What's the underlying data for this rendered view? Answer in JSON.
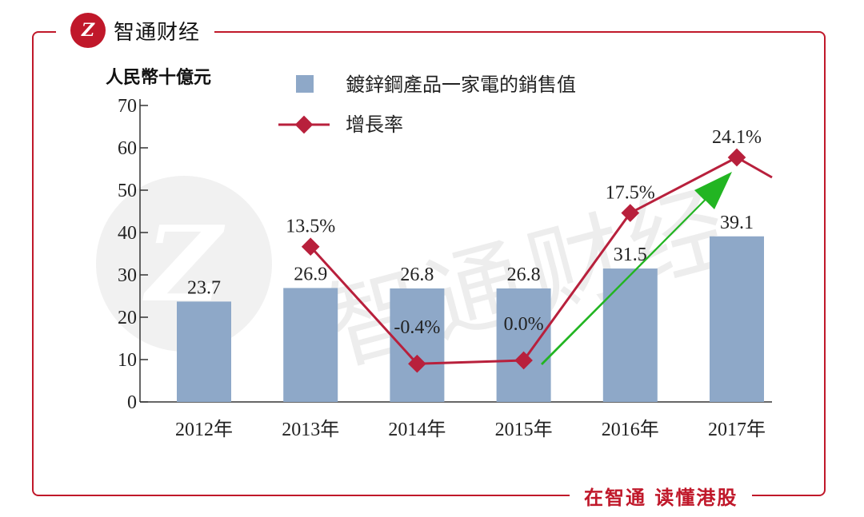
{
  "header": {
    "brand_logo": "Z",
    "brand_name": "智通财经"
  },
  "footer": {
    "slogan": "在智通 读懂港股"
  },
  "watermark": {
    "logo": "Z",
    "text": "智通财经"
  },
  "colors": {
    "frame": "#c0182a",
    "bar": "#8ea8c8",
    "line": "#b8203c",
    "arrow": "#22b522"
  },
  "chart_data": {
    "type": "bar",
    "ylabel": "人民幣十億元",
    "categories": [
      "2012年",
      "2013年",
      "2014年",
      "2015年",
      "2016年",
      "2017年"
    ],
    "y_ticks": [
      "0",
      "10",
      "20",
      "30",
      "40",
      "50",
      "60",
      "70"
    ],
    "ylim": [
      0,
      70
    ],
    "series": [
      {
        "name": "鍍鋅鋼產品一家電的銷售值",
        "type": "bar",
        "values": [
          23.7,
          26.9,
          26.8,
          26.8,
          31.5,
          39.1
        ],
        "labels": [
          "23.7",
          "26.9",
          "26.8",
          "26.8",
          "31.5",
          "39.1"
        ]
      },
      {
        "name": "增長率",
        "type": "line",
        "values": [
          null,
          13.5,
          -0.4,
          0.0,
          17.5,
          24.1
        ],
        "labels": [
          "",
          "13.5%",
          "-0.4%",
          "0.0%",
          "17.5%",
          "24.1%"
        ]
      }
    ],
    "legend_position": "top",
    "annotation": "green upward arrow from 2015 to 2017"
  }
}
